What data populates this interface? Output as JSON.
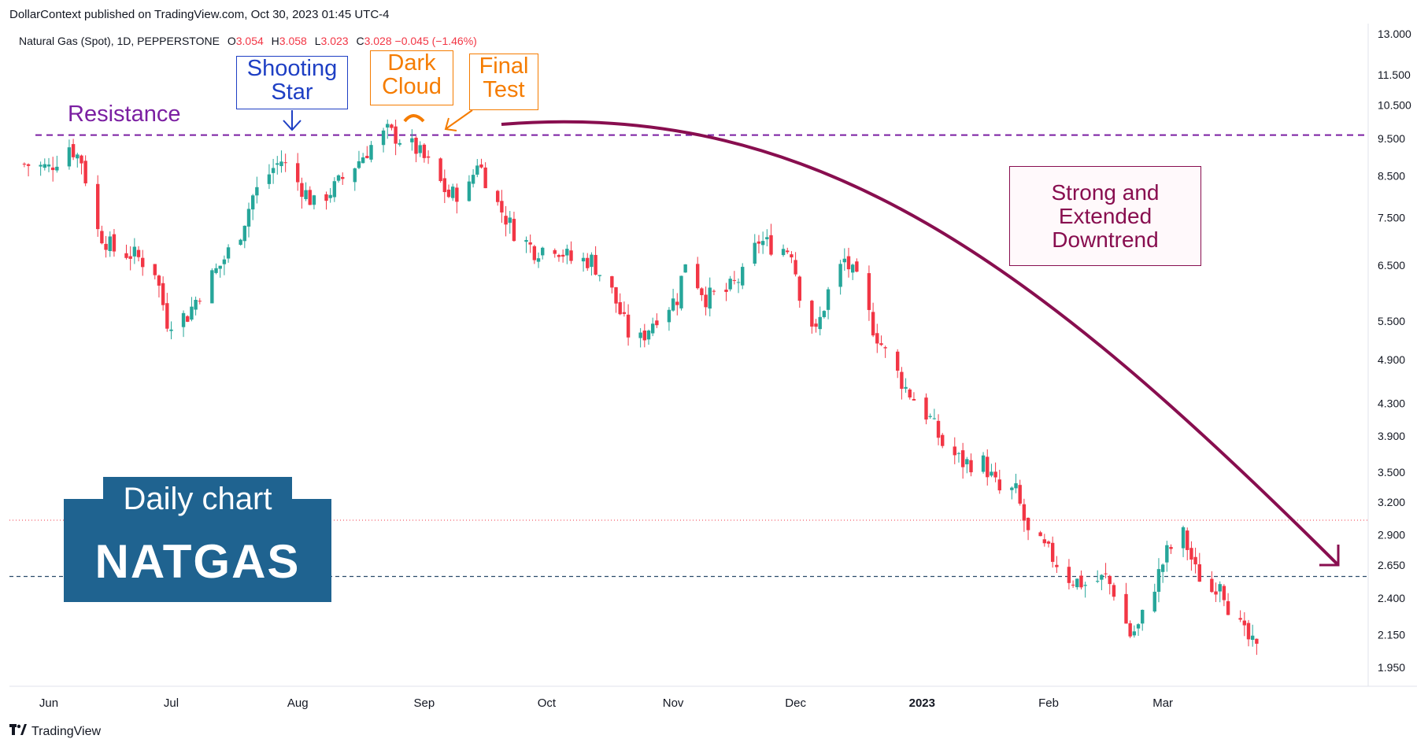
{
  "header": {
    "published": "DollarContext published on TradingView.com, Oct 30, 2023 01:45 UTC-4",
    "symbol": "Natural Gas (Spot), 1D, PEPPERSTONE",
    "ohlc": {
      "o_label": "O",
      "o": "3.054",
      "h_label": "H",
      "h": "3.058",
      "l_label": "L",
      "l": "3.023",
      "c_label": "C",
      "c": "3.028",
      "change": "−0.045 (−1.46%)"
    }
  },
  "badge": {
    "subtitle": "Daily chart",
    "title": "NATGAS"
  },
  "annotations": {
    "resistance": "Resistance",
    "shooting_star": [
      "Shooting",
      "Star"
    ],
    "dark_cloud": [
      "Dark",
      "Cloud"
    ],
    "final_test": [
      "Final",
      "Test"
    ],
    "downtrend": [
      "Strong and",
      "Extended",
      "Downtrend"
    ]
  },
  "colors": {
    "up": "#26a69a",
    "down": "#f23645",
    "resistance": "#7b1fa2",
    "arrow": "#880e4f",
    "shooting": "#1e3fc4",
    "orange": "#f57c00",
    "badge": "#1f6390",
    "price_line": "#f23645",
    "dashed_support": "#2a4b6b"
  },
  "footer": {
    "brand": "TradingView"
  },
  "chart_data": {
    "type": "candlestick",
    "y_scale": "log",
    "ylim": [
      1.8,
      13.5
    ],
    "y_ticks": [
      "13.000",
      "11.500",
      "10.500",
      "9.500",
      "8.500",
      "7.500",
      "6.500",
      "5.500",
      "4.900",
      "4.300",
      "3.900",
      "3.500",
      "3.200",
      "2.900",
      "2.650",
      "2.400",
      "2.150",
      "1.950"
    ],
    "x_ticks": [
      "Jun",
      "Jul",
      "Aug",
      "Sep",
      "Oct",
      "Nov",
      "Dec",
      "2023",
      "Feb",
      "Mar"
    ],
    "resistance_level": 9.6,
    "support_level": 2.56,
    "last_price_level": 3.03,
    "path_points": [
      {
        "x": "2022-05-26",
        "y": 8.8
      },
      {
        "x": "2022-06-01",
        "y": 8.7
      },
      {
        "x": "2022-06-06",
        "y": 9.3
      },
      {
        "x": "2022-06-09",
        "y": 8.9
      },
      {
        "x": "2022-06-13",
        "y": 7.2
      },
      {
        "x": "2022-06-17",
        "y": 6.8
      },
      {
        "x": "2022-06-22",
        "y": 6.7
      },
      {
        "x": "2022-06-27",
        "y": 6.4
      },
      {
        "x": "2022-06-30",
        "y": 5.5
      },
      {
        "x": "2022-07-05",
        "y": 5.6
      },
      {
        "x": "2022-07-08",
        "y": 6.0
      },
      {
        "x": "2022-07-13",
        "y": 6.5
      },
      {
        "x": "2022-07-18",
        "y": 7.2
      },
      {
        "x": "2022-07-21",
        "y": 8.0
      },
      {
        "x": "2022-07-26",
        "y": 8.7
      },
      {
        "x": "2022-07-28",
        "y": 8.9
      },
      {
        "x": "2022-08-02",
        "y": 8.2
      },
      {
        "x": "2022-08-05",
        "y": 7.8
      },
      {
        "x": "2022-08-10",
        "y": 8.2
      },
      {
        "x": "2022-08-16",
        "y": 8.9
      },
      {
        "x": "2022-08-19",
        "y": 9.3
      },
      {
        "x": "2022-08-23",
        "y": 9.7
      },
      {
        "x": "2022-08-26",
        "y": 9.5
      },
      {
        "x": "2022-08-30",
        "y": 9.2
      },
      {
        "x": "2022-09-02",
        "y": 8.8
      },
      {
        "x": "2022-09-07",
        "y": 8.0
      },
      {
        "x": "2022-09-12",
        "y": 8.2
      },
      {
        "x": "2022-09-14",
        "y": 8.9
      },
      {
        "x": "2022-09-19",
        "y": 7.8
      },
      {
        "x": "2022-09-23",
        "y": 7.2
      },
      {
        "x": "2022-09-28",
        "y": 6.8
      },
      {
        "x": "2022-10-03",
        "y": 6.9
      },
      {
        "x": "2022-10-07",
        "y": 6.6
      },
      {
        "x": "2022-10-12",
        "y": 6.6
      },
      {
        "x": "2022-10-17",
        "y": 6.0
      },
      {
        "x": "2022-10-21",
        "y": 5.3
      },
      {
        "x": "2022-10-24",
        "y": 5.2
      },
      {
        "x": "2022-10-28",
        "y": 5.6
      },
      {
        "x": "2022-11-02",
        "y": 5.9
      },
      {
        "x": "2022-11-04",
        "y": 6.6
      },
      {
        "x": "2022-11-09",
        "y": 5.9
      },
      {
        "x": "2022-11-14",
        "y": 6.0
      },
      {
        "x": "2022-11-18",
        "y": 6.3
      },
      {
        "x": "2022-11-22",
        "y": 7.0
      },
      {
        "x": "2022-11-25",
        "y": 6.9
      },
      {
        "x": "2022-11-30",
        "y": 6.8
      },
      {
        "x": "2022-12-02",
        "y": 6.0
      },
      {
        "x": "2022-12-06",
        "y": 5.3
      },
      {
        "x": "2022-12-09",
        "y": 6.0
      },
      {
        "x": "2022-12-13",
        "y": 6.6
      },
      {
        "x": "2022-12-16",
        "y": 6.2
      },
      {
        "x": "2022-12-20",
        "y": 5.4
      },
      {
        "x": "2022-12-23",
        "y": 5.0
      },
      {
        "x": "2022-12-28",
        "y": 4.5
      },
      {
        "x": "2023-01-03",
        "y": 4.1
      },
      {
        "x": "2023-01-06",
        "y": 3.8
      },
      {
        "x": "2023-01-11",
        "y": 3.6
      },
      {
        "x": "2023-01-16",
        "y": 3.6
      },
      {
        "x": "2023-01-20",
        "y": 3.3
      },
      {
        "x": "2023-01-24",
        "y": 3.3
      },
      {
        "x": "2023-01-27",
        "y": 2.9
      },
      {
        "x": "2023-02-01",
        "y": 2.75
      },
      {
        "x": "2023-02-06",
        "y": 2.55
      },
      {
        "x": "2023-02-10",
        "y": 2.5
      },
      {
        "x": "2023-02-15",
        "y": 2.55
      },
      {
        "x": "2023-02-17",
        "y": 2.45
      },
      {
        "x": "2023-02-21",
        "y": 2.15
      },
      {
        "x": "2023-02-23",
        "y": 2.2
      },
      {
        "x": "2023-02-27",
        "y": 2.5
      },
      {
        "x": "2023-03-02",
        "y": 2.75
      },
      {
        "x": "2023-03-06",
        "y": 2.9
      },
      {
        "x": "2023-03-09",
        "y": 2.6
      },
      {
        "x": "2023-03-13",
        "y": 2.45
      },
      {
        "x": "2023-03-15",
        "y": 2.55
      },
      {
        "x": "2023-03-17",
        "y": 2.35
      },
      {
        "x": "2023-03-21",
        "y": 2.15
      },
      {
        "x": "2023-03-24",
        "y": 2.05
      }
    ]
  }
}
